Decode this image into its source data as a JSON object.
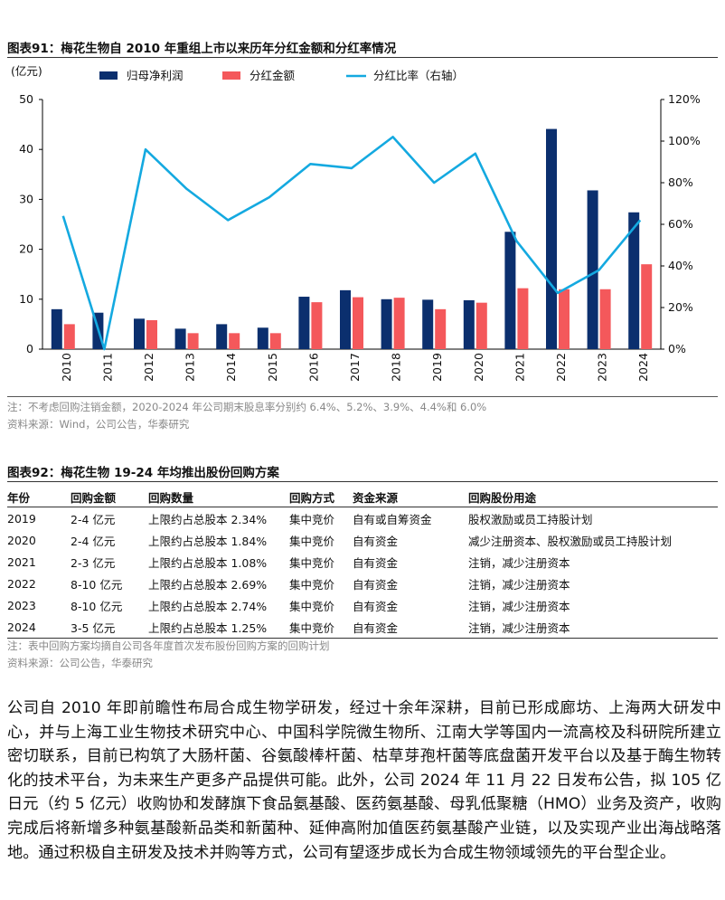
{
  "figure91": {
    "label": "图表91：",
    "title": "梅花生物自 2010 年重组上市以来历年分红金额和分红率情况",
    "note": "注：不考虑回购注销金额，2020-2024 年公司期末股息率分别约 6.4%、5.2%、3.9%、4.4%和 6.0%",
    "source": "资料来源：Wind，公司公告，华泰研究"
  },
  "chart_data": {
    "type": "bar",
    "categories": [
      "2010",
      "2011",
      "2012",
      "2013",
      "2014",
      "2015",
      "2016",
      "2017",
      "2018",
      "2019",
      "2020",
      "2021",
      "2022",
      "2023",
      "2024"
    ],
    "series": [
      {
        "name": "归母净利润",
        "kind": "bar",
        "axis": "left",
        "color": "#0b2f6e",
        "values": [
          8.0,
          7.3,
          6.1,
          4.1,
          5.0,
          4.3,
          10.5,
          11.8,
          10.0,
          9.9,
          9.8,
          23.5,
          44.1,
          31.8,
          27.4
        ]
      },
      {
        "name": "分红金额",
        "kind": "bar",
        "axis": "left",
        "color": "#f4585b",
        "values": [
          5.0,
          0.0,
          5.8,
          3.2,
          3.2,
          3.2,
          9.4,
          10.4,
          10.3,
          8.0,
          9.3,
          12.2,
          12.0,
          12.0,
          17.0
        ]
      },
      {
        "name": "分红比率（右轴）",
        "kind": "line",
        "axis": "right",
        "color": "#14a9e0",
        "values": [
          0.64,
          0.0,
          0.96,
          0.77,
          0.62,
          0.73,
          0.89,
          0.87,
          1.02,
          0.8,
          0.94,
          0.52,
          0.27,
          0.38,
          0.62
        ]
      }
    ],
    "ylabel": "(亿元)",
    "ylim": [
      0,
      50
    ],
    "yticks": [
      "0",
      "10",
      "20",
      "30",
      "40",
      "50"
    ],
    "y2lim": [
      0,
      1.2
    ],
    "y2ticks": [
      "0%",
      "20%",
      "40%",
      "60%",
      "80%",
      "100%",
      "120%"
    ],
    "legend": "top"
  },
  "figure92": {
    "label": "图表92：",
    "title": "梅花生物 19-24 年均推出股份回购方案",
    "headers": [
      "年份",
      "回购金额",
      "回购数量",
      "回购方式",
      "资金来源",
      "回购股份用途"
    ],
    "rows": [
      [
        "2019",
        "2-4 亿元",
        "上限约占总股本 2.34%",
        "集中竞价",
        "自有或自筹资金",
        "股权激励或员工持股计划"
      ],
      [
        "2020",
        "2-4 亿元",
        "上限约占总股本 1.84%",
        "集中竞价",
        "自有资金",
        "减少注册资本、股权激励或员工持股计划"
      ],
      [
        "2021",
        "2-3 亿元",
        "上限约占总股本 1.08%",
        "集中竞价",
        "自有资金",
        "注销，减少注册资本"
      ],
      [
        "2022",
        "8-10 亿元",
        "上限约占总股本 2.69%",
        "集中竞价",
        "自有资金",
        "注销，减少注册资本"
      ],
      [
        "2023",
        "8-10 亿元",
        "上限约占总股本 2.74%",
        "集中竞价",
        "自有资金",
        "注销，减少注册资本"
      ],
      [
        "2024",
        "3-5 亿元",
        "上限约占总股本 1.25%",
        "集中竞价",
        "自有资金",
        "注销，减少注册资本"
      ]
    ],
    "note": "注：表中回购方案均摘自公司各年度首次发布股份回购方案的回购计划",
    "source": "资料来源：公司公告，华泰研究"
  },
  "body_paragraph": "公司自 2010 年即前瞻性布局合成生物学研发，经过十余年深耕，目前已形成廊坊、上海两大研发中心，并与上海工业生物技术研究中心、中国科学院微生物所、江南大学等国内一流高校及科研院所建立密切联系，目前已构筑了大肠杆菌、谷氨酸棒杆菌、枯草芽孢杆菌等底盘菌开发平台以及基于酶生物转化的技术平台，为未来生产更多产品提供可能。此外，公司 2024 年 11 月 22 日发布公告，拟 105 亿日元（约 5 亿元）收购协和发酵旗下食品氨基酸、医药氨基酸、母乳低聚糖（HMO）业务及资产，收购完成后将新增多种氨基酸新品类和新菌种、延伸高附加值医药氨基酸产业链，以及实现产业出海战略落地。通过积极自主研发及技术并购等方式，公司有望逐步成长为合成生物领域领先的平台型企业。"
}
